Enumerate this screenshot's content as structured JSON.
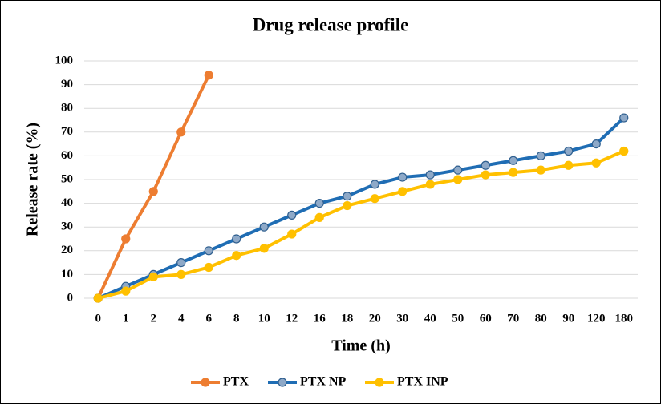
{
  "chart_data": {
    "type": "line",
    "title": "Drug release profile",
    "x_label": "Time (h)",
    "y_label": "Release rate (%)",
    "categories": [
      "0",
      "1",
      "2",
      "4",
      "6",
      "8",
      "10",
      "12",
      "16",
      "18",
      "20",
      "30",
      "40",
      "50",
      "60",
      "70",
      "80",
      "90",
      "120",
      "180"
    ],
    "series": [
      {
        "name": "PTX",
        "color": "#ed7d31",
        "marker_color": "#ed7d31",
        "values": [
          0,
          25,
          45,
          70,
          94,
          null,
          null,
          null,
          null,
          null,
          null,
          null,
          null,
          null,
          null,
          null,
          null,
          null,
          null,
          null
        ]
      },
      {
        "name": "PTX NP",
        "color": "#1f6db4",
        "marker_color": "#8ea9c8",
        "values": [
          0,
          5,
          10,
          15,
          20,
          25,
          30,
          35,
          40,
          43,
          48,
          51,
          52,
          54,
          56,
          58,
          60,
          62,
          65,
          76
        ]
      },
      {
        "name": "PTX INP",
        "color": "#ffc000",
        "marker_color": "#ffc000",
        "values": [
          0,
          3,
          9,
          10,
          13,
          18,
          21,
          27,
          34,
          39,
          42,
          45,
          48,
          50,
          52,
          53,
          54,
          56,
          57,
          62
        ]
      }
    ],
    "ylim": [
      0,
      100
    ],
    "yticks": [
      0,
      10,
      20,
      30,
      40,
      50,
      60,
      70,
      80,
      90,
      100
    ],
    "grid": true,
    "legend": "bottom"
  }
}
